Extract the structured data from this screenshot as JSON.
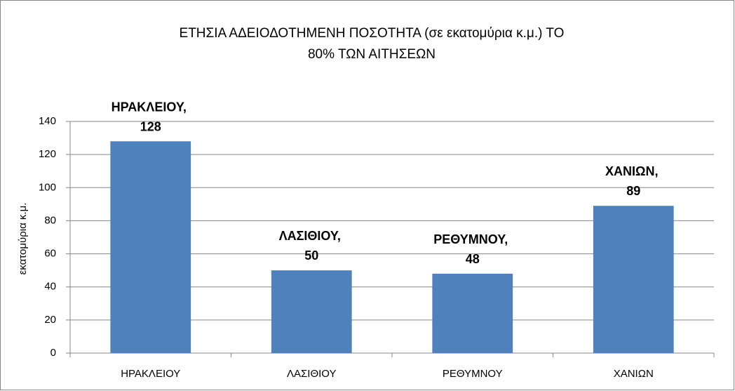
{
  "chart_data": {
    "type": "bar",
    "title": [
      "ΕΤΗΣΙΑ ΑΔΕΙΟΔΟΤΗΜΕΝΗ ΠΟΣΟΤΗΤΑ (σε εκατομύρια κ.μ.)   ΤΟ",
      "80% ΤΩΝ ΑΙΤΗΣΕΩΝ"
    ],
    "y_label": "εκατομύρια κ.μ.",
    "categories": [
      "ΗΡΑΚΛΕΙΟΥ",
      "ΛΑΣΙΘΙΟΥ",
      "ΡΕΘΥΜΝΟΥ",
      "ΧΑΝΙΩΝ"
    ],
    "values": [
      128,
      50,
      48,
      89
    ],
    "value_labels": [
      "ΗΡΑΚΛΕΙΟΥ, 128",
      "ΛΑΣΙΘΙΟΥ, 50",
      "ΡΕΘΥΜΝΟΥ, 48",
      "ΧΑΝΙΩΝ, 89"
    ],
    "color": "#4f81bd",
    "ylim": [
      0,
      140
    ],
    "yticks": [
      0,
      20,
      40,
      60,
      80,
      100,
      120,
      140
    ],
    "grid": true
  }
}
